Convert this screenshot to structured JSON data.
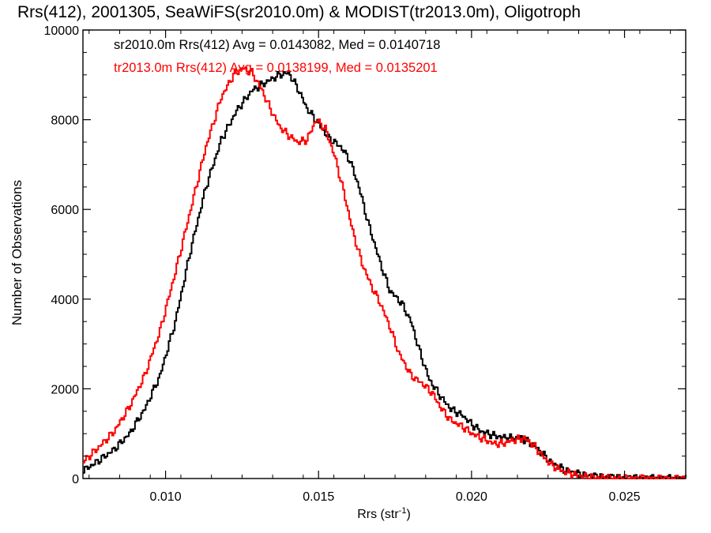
{
  "chart_data": {
    "type": "line",
    "title": "Rrs(412), 2001305, SeaWiFS(sr2010.0m) & MODIST(tr2013.0m), Oligotroph",
    "xlabel": "Rrs (str",
    "xlabel_sup": "-1",
    "xlabel_close": ")",
    "ylabel": "Number of Observations",
    "xlim": [
      0.0073,
      0.027
    ],
    "ylim": [
      0,
      10000
    ],
    "xticks": [
      0.01,
      0.015,
      0.02,
      0.025
    ],
    "xtick_labels": [
      "0.010",
      "0.015",
      "0.020",
      "0.025"
    ],
    "yticks": [
      0,
      2000,
      4000,
      6000,
      8000,
      10000
    ],
    "ytick_labels": [
      "0",
      "2000",
      "4000",
      "6000",
      "8000",
      "10000"
    ],
    "legend_placement": "top-left",
    "series": [
      {
        "name": "sr2010.0m Rrs(412) Avg = 0.0143082, Med = 0.0140718",
        "color": "#000000",
        "points": [
          [
            0.0073,
            180
          ],
          [
            0.0078,
            400
          ],
          [
            0.0083,
            650
          ],
          [
            0.0088,
            1000
          ],
          [
            0.0093,
            1550
          ],
          [
            0.0098,
            2300
          ],
          [
            0.0103,
            3500
          ],
          [
            0.0108,
            5100
          ],
          [
            0.0113,
            6500
          ],
          [
            0.0118,
            7550
          ],
          [
            0.0123,
            8200
          ],
          [
            0.0128,
            8650
          ],
          [
            0.0133,
            8850
          ],
          [
            0.0137,
            9000
          ],
          [
            0.014,
            9050
          ],
          [
            0.0143,
            8700
          ],
          [
            0.0146,
            8250
          ],
          [
            0.015,
            7900
          ],
          [
            0.0153,
            7600
          ],
          [
            0.0157,
            7400
          ],
          [
            0.016,
            7100
          ],
          [
            0.0163,
            6500
          ],
          [
            0.0166,
            5700
          ],
          [
            0.017,
            4800
          ],
          [
            0.0173,
            4200
          ],
          [
            0.0177,
            3900
          ],
          [
            0.018,
            3500
          ],
          [
            0.0183,
            2800
          ],
          [
            0.0186,
            2200
          ],
          [
            0.019,
            1800
          ],
          [
            0.0193,
            1550
          ],
          [
            0.0197,
            1400
          ],
          [
            0.02,
            1200
          ],
          [
            0.0203,
            1050
          ],
          [
            0.0207,
            960
          ],
          [
            0.021,
            920
          ],
          [
            0.0213,
            900
          ],
          [
            0.0216,
            900
          ],
          [
            0.022,
            750
          ],
          [
            0.0223,
            550
          ],
          [
            0.0226,
            350
          ],
          [
            0.023,
            200
          ],
          [
            0.0235,
            100
          ],
          [
            0.024,
            50
          ],
          [
            0.025,
            15
          ],
          [
            0.026,
            5
          ],
          [
            0.027,
            0
          ]
        ]
      },
      {
        "name": "tr2013.0m Rrs(412) Avg = 0.0138199, Med = 0.0135201",
        "color": "#ff0000",
        "points": [
          [
            0.0073,
            380
          ],
          [
            0.0078,
            700
          ],
          [
            0.0083,
            1050
          ],
          [
            0.0088,
            1600
          ],
          [
            0.0093,
            2300
          ],
          [
            0.0098,
            3300
          ],
          [
            0.0103,
            4600
          ],
          [
            0.0108,
            6000
          ],
          [
            0.0113,
            7400
          ],
          [
            0.0118,
            8500
          ],
          [
            0.0122,
            9000
          ],
          [
            0.0125,
            9150
          ],
          [
            0.0128,
            9050
          ],
          [
            0.0131,
            8700
          ],
          [
            0.0134,
            8250
          ],
          [
            0.0137,
            7850
          ],
          [
            0.014,
            7650
          ],
          [
            0.0143,
            7500
          ],
          [
            0.0146,
            7550
          ],
          [
            0.0149,
            8000
          ],
          [
            0.0152,
            7800
          ],
          [
            0.0155,
            7200
          ],
          [
            0.0158,
            6400
          ],
          [
            0.0161,
            5500
          ],
          [
            0.0164,
            4800
          ],
          [
            0.0167,
            4300
          ],
          [
            0.017,
            3900
          ],
          [
            0.0173,
            3400
          ],
          [
            0.0176,
            2800
          ],
          [
            0.018,
            2300
          ],
          [
            0.0184,
            2100
          ],
          [
            0.0187,
            1900
          ],
          [
            0.019,
            1550
          ],
          [
            0.0193,
            1300
          ],
          [
            0.0197,
            1150
          ],
          [
            0.02,
            1000
          ],
          [
            0.0203,
            900
          ],
          [
            0.0207,
            780
          ],
          [
            0.021,
            780
          ],
          [
            0.0213,
            850
          ],
          [
            0.0217,
            900
          ],
          [
            0.022,
            750
          ],
          [
            0.0223,
            500
          ],
          [
            0.0226,
            300
          ],
          [
            0.023,
            150
          ],
          [
            0.0235,
            60
          ],
          [
            0.024,
            20
          ],
          [
            0.025,
            5
          ],
          [
            0.027,
            0
          ]
        ]
      }
    ]
  }
}
